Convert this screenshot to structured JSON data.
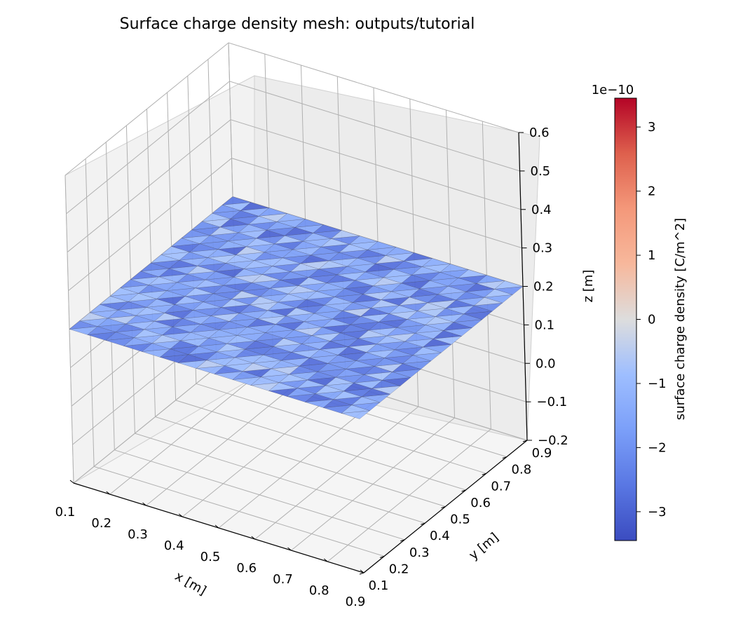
{
  "chart_data": {
    "type": "surface3d",
    "title": "Surface charge density mesh: outputs/tutorial",
    "xlabel": "x [m]",
    "ylabel": "y [m]",
    "zlabel": "z [m]",
    "xlim": [
      0.1,
      0.9
    ],
    "ylim": [
      0.1,
      0.9
    ],
    "zlim": [
      -0.2,
      0.6
    ],
    "xticks": [
      "0.1",
      "0.2",
      "0.3",
      "0.4",
      "0.5",
      "0.6",
      "0.7",
      "0.8",
      "0.9"
    ],
    "yticks": [
      "0.1",
      "0.2",
      "0.3",
      "0.4",
      "0.5",
      "0.6",
      "0.7",
      "0.8",
      "0.9"
    ],
    "zticks": [
      "−0.2",
      "−0.1",
      "0.0",
      "0.1",
      "0.2",
      "0.3",
      "0.4",
      "0.5",
      "0.6"
    ],
    "surface": {
      "z": 0.2,
      "grid_divisions": 16,
      "mesh": "triangular",
      "colormap": "coolwarm",
      "typical_value_range": [
        -3,
        -0.5
      ]
    },
    "grid": true,
    "colorbar": {
      "label": "surface charge density [C/m^2]",
      "scale_label": "1e−10",
      "ticks": [
        "−3",
        "−2",
        "−1",
        "0",
        "1",
        "2",
        "3"
      ],
      "range": [
        -3.45,
        3.45
      ]
    }
  }
}
